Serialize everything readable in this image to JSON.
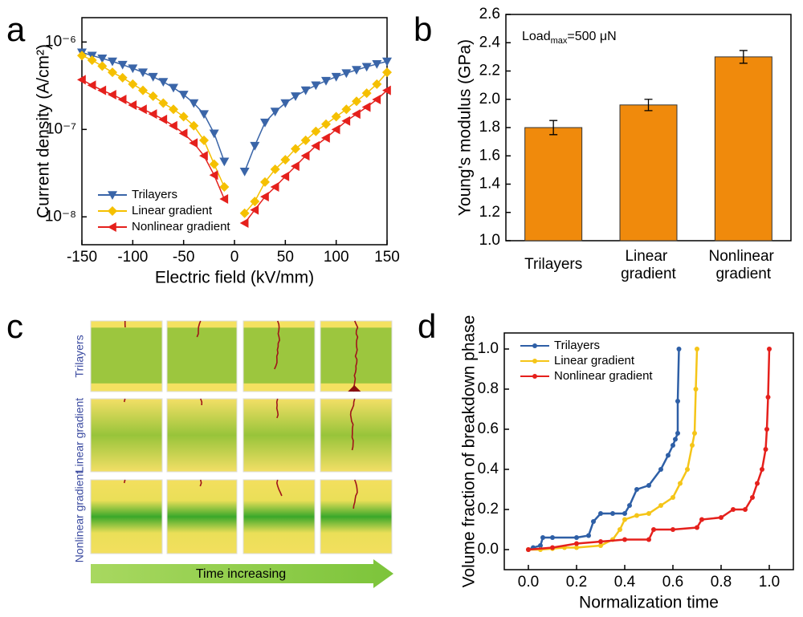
{
  "chart_data": [
    {
      "type": "line",
      "panel": "a",
      "xlabel": "Electric field (kV/mm)",
      "ylabel": "Current density (A/cm²)",
      "log_y": true,
      "xlim": [
        -150,
        150
      ],
      "xticks": [
        -150,
        -100,
        -50,
        0,
        50,
        100,
        150
      ],
      "ylim": [
        4.8e-09,
        1.9e-06
      ],
      "yticks": [
        {
          "value": 1e-08,
          "label": "10⁻⁸"
        },
        {
          "value": 1e-07,
          "label": "10⁻⁷"
        },
        {
          "value": 1e-06,
          "label": "10⁻⁶"
        }
      ],
      "legend": "lower left",
      "x": [
        -150,
        -140,
        -130,
        -120,
        -110,
        -100,
        -90,
        -80,
        -70,
        -60,
        -50,
        -40,
        -30,
        -20,
        -10,
        0,
        10,
        20,
        30,
        40,
        50,
        60,
        70,
        80,
        90,
        100,
        110,
        120,
        130,
        140,
        150
      ],
      "series": [
        {
          "name": "Trilayers",
          "color": "#3a65a8",
          "marker": "triangle-down",
          "values": [
            7.6e-07,
            7e-07,
            6.5e-07,
            6e-07,
            5.5e-07,
            5e-07,
            4.5e-07,
            4e-07,
            3.5e-07,
            3e-07,
            2.5e-07,
            2e-07,
            1.5e-07,
            9e-08,
            4.3e-08,
            null,
            3.3e-08,
            6.5e-08,
            1.2e-07,
            1.6e-07,
            2e-07,
            2.4e-07,
            2.8e-07,
            3.2e-07,
            3.6e-07,
            4e-07,
            4.4e-07,
            4.8e-07,
            5.2e-07,
            5.6e-07,
            6e-07
          ]
        },
        {
          "name": "Linear gradient",
          "color": "#f5c000",
          "marker": "diamond",
          "values": [
            7e-07,
            6.2e-07,
            5.3e-07,
            4.5e-07,
            3.9e-07,
            3.3e-07,
            2.8e-07,
            2.4e-07,
            2e-07,
            1.7e-07,
            1.4e-07,
            1.1e-07,
            7.5e-08,
            4e-08,
            2.2e-08,
            null,
            1.1e-08,
            1.5e-08,
            2.5e-08,
            3.5e-08,
            4.5e-08,
            6e-08,
            7.5e-08,
            9.5e-08,
            1.15e-07,
            1.4e-07,
            1.7e-07,
            2.1e-07,
            2.6e-07,
            3.3e-07,
            4.5e-07
          ]
        },
        {
          "name": "Nonlinear gradient",
          "color": "#e5201c",
          "marker": "triangle-left",
          "values": [
            3.7e-07,
            3.2e-07,
            2.8e-07,
            2.5e-07,
            2.2e-07,
            1.9e-07,
            1.7e-07,
            1.5e-07,
            1.3e-07,
            1.1e-07,
            9e-08,
            7e-08,
            5e-08,
            3e-08,
            1.6e-08,
            null,
            8.5e-09,
            1.2e-08,
            1.7e-08,
            2.2e-08,
            2.9e-08,
            3.8e-08,
            5e-08,
            6.5e-08,
            8e-08,
            1e-07,
            1.25e-07,
            1.5e-07,
            1.8e-07,
            2.2e-07,
            2.8e-07
          ]
        }
      ]
    },
    {
      "type": "bar",
      "panel": "b",
      "ylabel": "Young's modulus (GPa)",
      "annotation": {
        "text": "Load",
        "subscript": "max",
        "rest": "=500 μN"
      },
      "categories": [
        "Trilayers",
        "Linear gradient",
        "Nonlinear gradient"
      ],
      "values": [
        1.8,
        1.96,
        2.3
      ],
      "errors": [
        0.05,
        0.04,
        0.045
      ],
      "color": "#f08a0c",
      "ylim": [
        1.0,
        2.6
      ],
      "yticks": [
        {
          "value": 1.0,
          "label": "1.0"
        },
        1.2,
        1.4,
        1.6,
        1.8,
        {
          "value": 2.0,
          "label": "2.0"
        },
        2.2,
        2.4,
        2.6
      ]
    },
    {
      "type": "line",
      "panel": "d",
      "xlabel": "Normalization time",
      "ylabel": "Volume fraction of breakdown phase",
      "xlim": [
        -0.1,
        1.1
      ],
      "ylim": [
        -0.1,
        1.08
      ],
      "xticks": [
        {
          "value": 0,
          "label": "0.0"
        },
        0.2,
        0.4,
        0.6,
        0.8,
        {
          "value": 1,
          "label": "1.0"
        }
      ],
      "yticks": [
        {
          "value": 0,
          "label": "0.0"
        },
        0.2,
        0.4,
        0.6,
        0.8,
        {
          "value": 1,
          "label": "1.0"
        }
      ],
      "legend": "upper left",
      "series": [
        {
          "name": "Trilayers",
          "color": "#2e5fa6",
          "marker": "circle",
          "x": [
            0.0,
            0.02,
            0.05,
            0.06,
            0.1,
            0.2,
            0.25,
            0.27,
            0.3,
            0.35,
            0.4,
            0.42,
            0.45,
            0.5,
            0.55,
            0.58,
            0.6,
            0.61,
            0.62,
            0.62,
            0.625
          ],
          "values": [
            0,
            0.01,
            0.02,
            0.06,
            0.06,
            0.06,
            0.07,
            0.14,
            0.18,
            0.18,
            0.18,
            0.22,
            0.3,
            0.32,
            0.4,
            0.47,
            0.52,
            0.55,
            0.58,
            0.74,
            1.0
          ]
        },
        {
          "name": "Linear gradient",
          "color": "#f5c518",
          "marker": "circle",
          "x": [
            0,
            0.05,
            0.1,
            0.15,
            0.2,
            0.3,
            0.35,
            0.38,
            0.4,
            0.45,
            0.5,
            0.55,
            0.6,
            0.63,
            0.66,
            0.68,
            0.69,
            0.695,
            0.7
          ],
          "values": [
            0,
            0,
            0.005,
            0.01,
            0.01,
            0.02,
            0.05,
            0.1,
            0.15,
            0.17,
            0.18,
            0.22,
            0.26,
            0.33,
            0.4,
            0.52,
            0.58,
            0.8,
            1.0
          ]
        },
        {
          "name": "Nonlinear gradient",
          "color": "#e5201c",
          "marker": "circle",
          "x": [
            0,
            0.1,
            0.2,
            0.3,
            0.4,
            0.5,
            0.52,
            0.6,
            0.7,
            0.72,
            0.8,
            0.85,
            0.9,
            0.93,
            0.95,
            0.97,
            0.985,
            0.99,
            0.995,
            1.0
          ],
          "values": [
            0,
            0.01,
            0.03,
            0.04,
            0.05,
            0.05,
            0.1,
            0.1,
            0.11,
            0.15,
            0.16,
            0.2,
            0.2,
            0.26,
            0.33,
            0.4,
            0.5,
            0.6,
            0.76,
            1.0
          ]
        }
      ]
    }
  ],
  "diagram": {
    "panel": "c",
    "rows": [
      "Trilayers",
      "Linear gradient",
      "Nonlinear gradient"
    ],
    "arrow_label": "Time increasing"
  }
}
